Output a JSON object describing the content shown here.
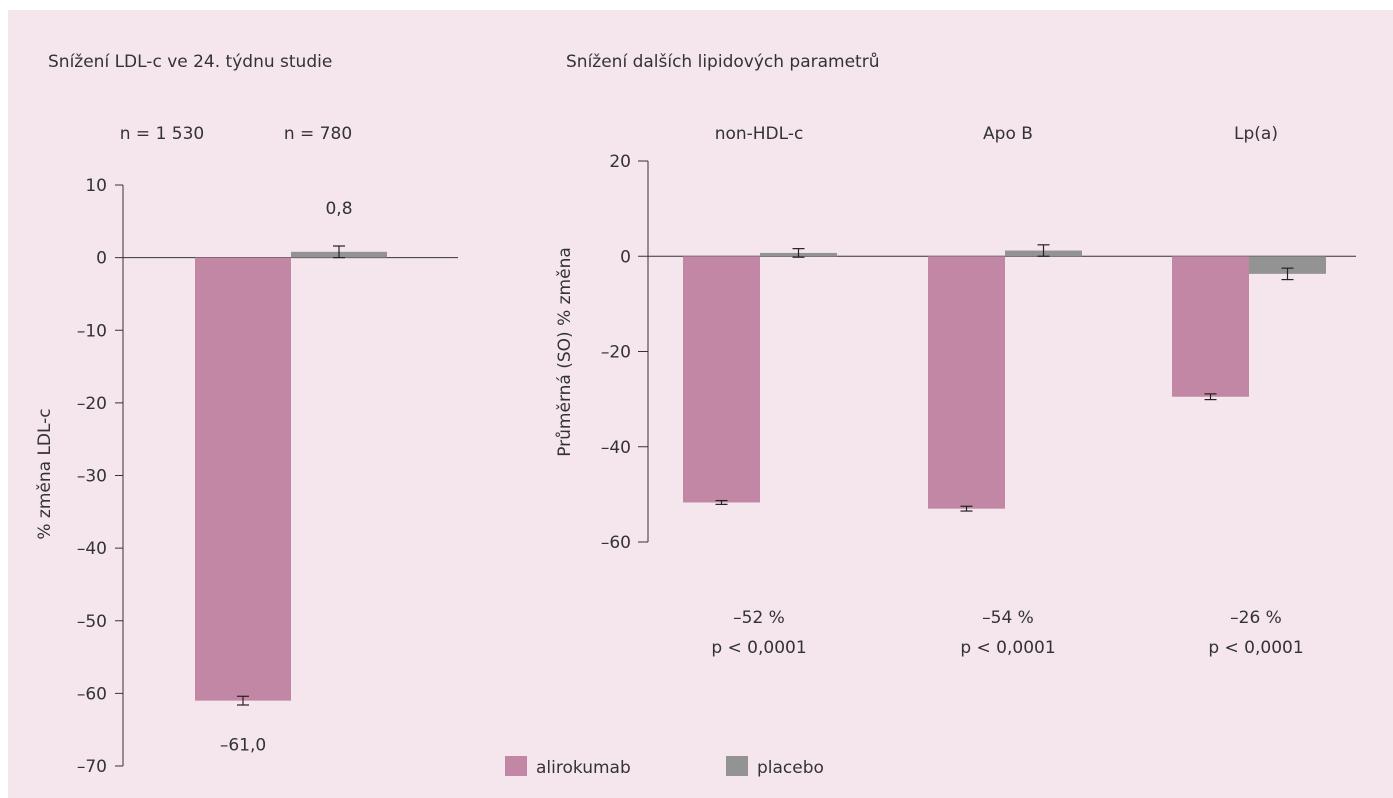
{
  "colors": {
    "background": "#f5e6ee",
    "alirokumab": "#c287a4",
    "placebo": "#939393",
    "axis": "#333333",
    "text": "#333333"
  },
  "legend": {
    "placement": "bottom-center",
    "items": [
      {
        "name": "alirokumab",
        "color": "#c287a4"
      },
      {
        "name": "placebo",
        "color": "#939393"
      }
    ]
  },
  "chart_data": [
    {
      "type": "bar",
      "title": "Snížení LDL-c ve 24. týdnu studie",
      "ylabel": "% změna LDL-c",
      "ylim": [
        -70,
        10
      ],
      "yticks": [
        10,
        0,
        -10,
        -20,
        -30,
        -40,
        -50,
        -60,
        -70
      ],
      "ytick_labels": [
        "10",
        "0",
        "–10",
        "–20",
        "–30",
        "–40",
        "–50",
        "–60",
        "–70"
      ],
      "grid": false,
      "group_labels": [
        "n = 1 530",
        "n = 780"
      ],
      "bars": [
        {
          "series": "alirokumab",
          "value": -61.0,
          "error": 0.6,
          "label": "–61,0"
        },
        {
          "series": "placebo",
          "value": 0.8,
          "error": 0.8,
          "label": "0,8"
        }
      ]
    },
    {
      "type": "bar",
      "title": "Snížení dalších lipidových parametrů",
      "ylabel": "Průměrná (SO) % změna",
      "ylim": [
        -60,
        20
      ],
      "yticks": [
        20,
        0,
        -20,
        -40,
        -60
      ],
      "ytick_labels": [
        "20",
        "0",
        "–20",
        "–40",
        "–60"
      ],
      "grid": false,
      "categories": [
        "non-HDL-c",
        "Apo B",
        "Lp(a)"
      ],
      "series": [
        {
          "name": "alirokumab",
          "values": [
            -51.7,
            -53.0,
            -29.5
          ],
          "errors": [
            0.4,
            0.5,
            0.6
          ]
        },
        {
          "name": "placebo",
          "values": [
            0.7,
            1.2,
            -3.7
          ],
          "errors": [
            0.9,
            1.2,
            1.2
          ]
        }
      ],
      "annotations": [
        {
          "category": "non-HDL-c",
          "change": "–52 %",
          "p": "p < 0,0001"
        },
        {
          "category": "Apo B",
          "change": "–54 %",
          "p": "p < 0,0001"
        },
        {
          "category": "Lp(a)",
          "change": "–26 %",
          "p": "p < 0,0001"
        }
      ]
    }
  ]
}
